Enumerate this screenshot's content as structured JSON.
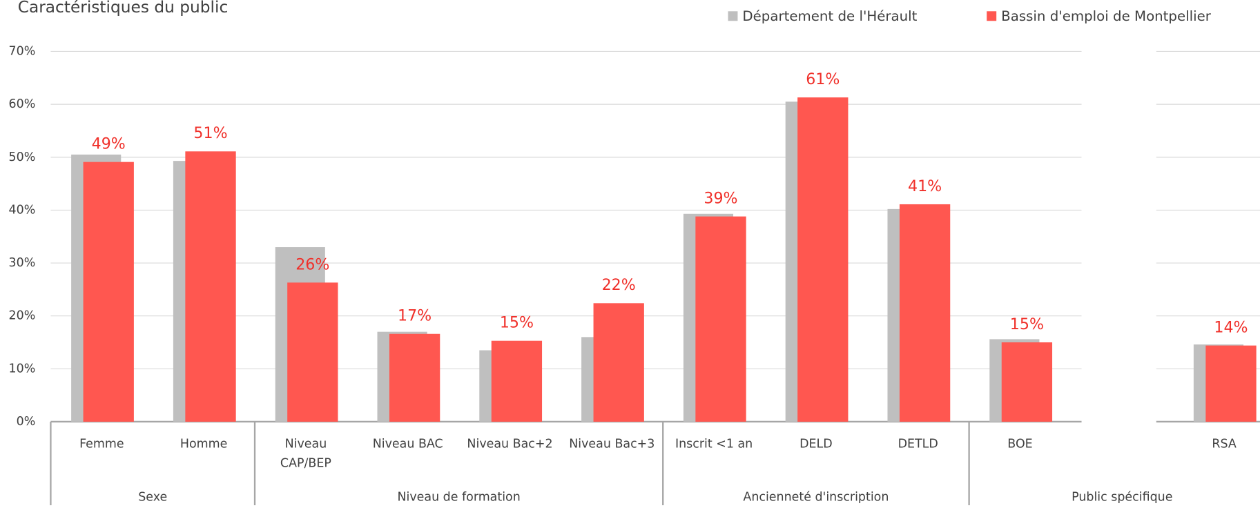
{
  "chart_data": {
    "type": "bar",
    "title": "Caractéristiques du public",
    "categories": [
      "Femme",
      "Homme",
      "Niveau\nCAP/BEP",
      "Niveau BAC",
      "Niveau Bac+2",
      "Niveau Bac+3",
      "Inscrit <1 an",
      "DELD",
      "DETLD",
      "BOE",
      null,
      "RSA"
    ],
    "groups": [
      {
        "label": "Sexe",
        "size": 2
      },
      {
        "label": "Niveau de formation",
        "size": 4
      },
      {
        "label": "Ancienneté d'inscription",
        "size": 3
      },
      {
        "label": "Public spécifique",
        "size": 3
      }
    ],
    "series": [
      {
        "name": "Département de l'Hérault",
        "color": "#bfbfbf",
        "values": [
          50.5,
          49.3,
          33,
          17,
          13.5,
          16,
          39.3,
          60.5,
          40.2,
          15.6,
          null,
          14.6
        ]
      },
      {
        "name": "Bassin d'emploi de Montpellier",
        "color": "#ff5750",
        "values": [
          49.1,
          51.1,
          26.3,
          16.6,
          15.3,
          22.4,
          38.8,
          61.3,
          41.1,
          15,
          null,
          14.4
        ],
        "value_labels": [
          "49%",
          "51%",
          "26%",
          "17%",
          "15%",
          "22%",
          "39%",
          "61%",
          "41%",
          "15%",
          null,
          "14%"
        ]
      }
    ],
    "ylim": [
      0,
      70
    ],
    "yticks": [
      {
        "value": 0,
        "label": "0%"
      },
      {
        "value": 10,
        "label": "10%"
      },
      {
        "value": 20,
        "label": "20%"
      },
      {
        "value": 30,
        "label": "30%"
      },
      {
        "value": 40,
        "label": "40%"
      },
      {
        "value": 50,
        "label": "50%"
      },
      {
        "value": 60,
        "label": "60%"
      },
      {
        "value": 70,
        "label": "70%"
      }
    ],
    "grid": true,
    "legend": "top"
  }
}
